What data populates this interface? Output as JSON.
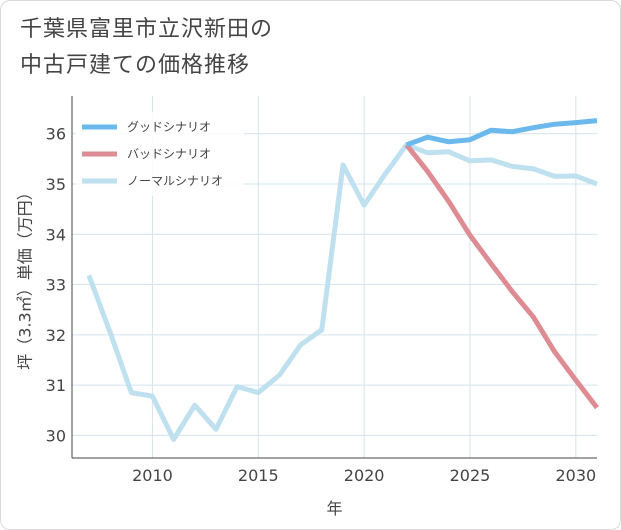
{
  "title_lines": [
    "千葉県富里市立沢新田の",
    "中古戸建ての価格推移"
  ],
  "chart_data": {
    "type": "line",
    "xlabel": "年",
    "ylabel": "坪（3.3㎡）単価（万円）",
    "xlim": [
      2006.2,
      2031
    ],
    "ylim": [
      29.55,
      36.75
    ],
    "xticks": [
      2010,
      2015,
      2020,
      2025,
      2030
    ],
    "yticks": [
      30,
      31,
      32,
      33,
      34,
      35,
      36
    ],
    "grid": true,
    "legend_position": "top-left",
    "series": [
      {
        "name": "グッドシナリオ",
        "color": "#6bb8ec",
        "x": [
          2022,
          2023,
          2024,
          2025,
          2026,
          2027,
          2028,
          2029,
          2030,
          2031
        ],
        "y": [
          35.78,
          35.93,
          35.84,
          35.88,
          36.07,
          36.04,
          36.12,
          36.19,
          36.22,
          36.26
        ]
      },
      {
        "name": "バッドシナリオ",
        "color": "#de8c93",
        "x": [
          2022,
          2023,
          2024,
          2025,
          2026,
          2027,
          2028,
          2029,
          2030,
          2031
        ],
        "y": [
          35.78,
          35.25,
          34.65,
          33.98,
          33.41,
          32.86,
          32.35,
          31.66,
          31.1,
          30.55
        ]
      },
      {
        "name": "ノーマルシナリオ",
        "color": "#bfe0ee",
        "x": [
          2007,
          2008,
          2009,
          2010,
          2011,
          2012,
          2013,
          2014,
          2015,
          2016,
          2017,
          2018,
          2019,
          2020,
          2021,
          2022,
          2023,
          2024,
          2025,
          2026,
          2027,
          2028,
          2029,
          2030,
          2031
        ],
        "y": [
          33.18,
          32.05,
          30.85,
          30.78,
          29.92,
          30.6,
          30.12,
          30.97,
          30.85,
          31.2,
          31.8,
          32.1,
          35.38,
          34.58,
          35.2,
          35.78,
          35.62,
          35.64,
          35.46,
          35.48,
          35.35,
          35.3,
          35.15,
          35.16,
          35.0
        ]
      }
    ]
  }
}
